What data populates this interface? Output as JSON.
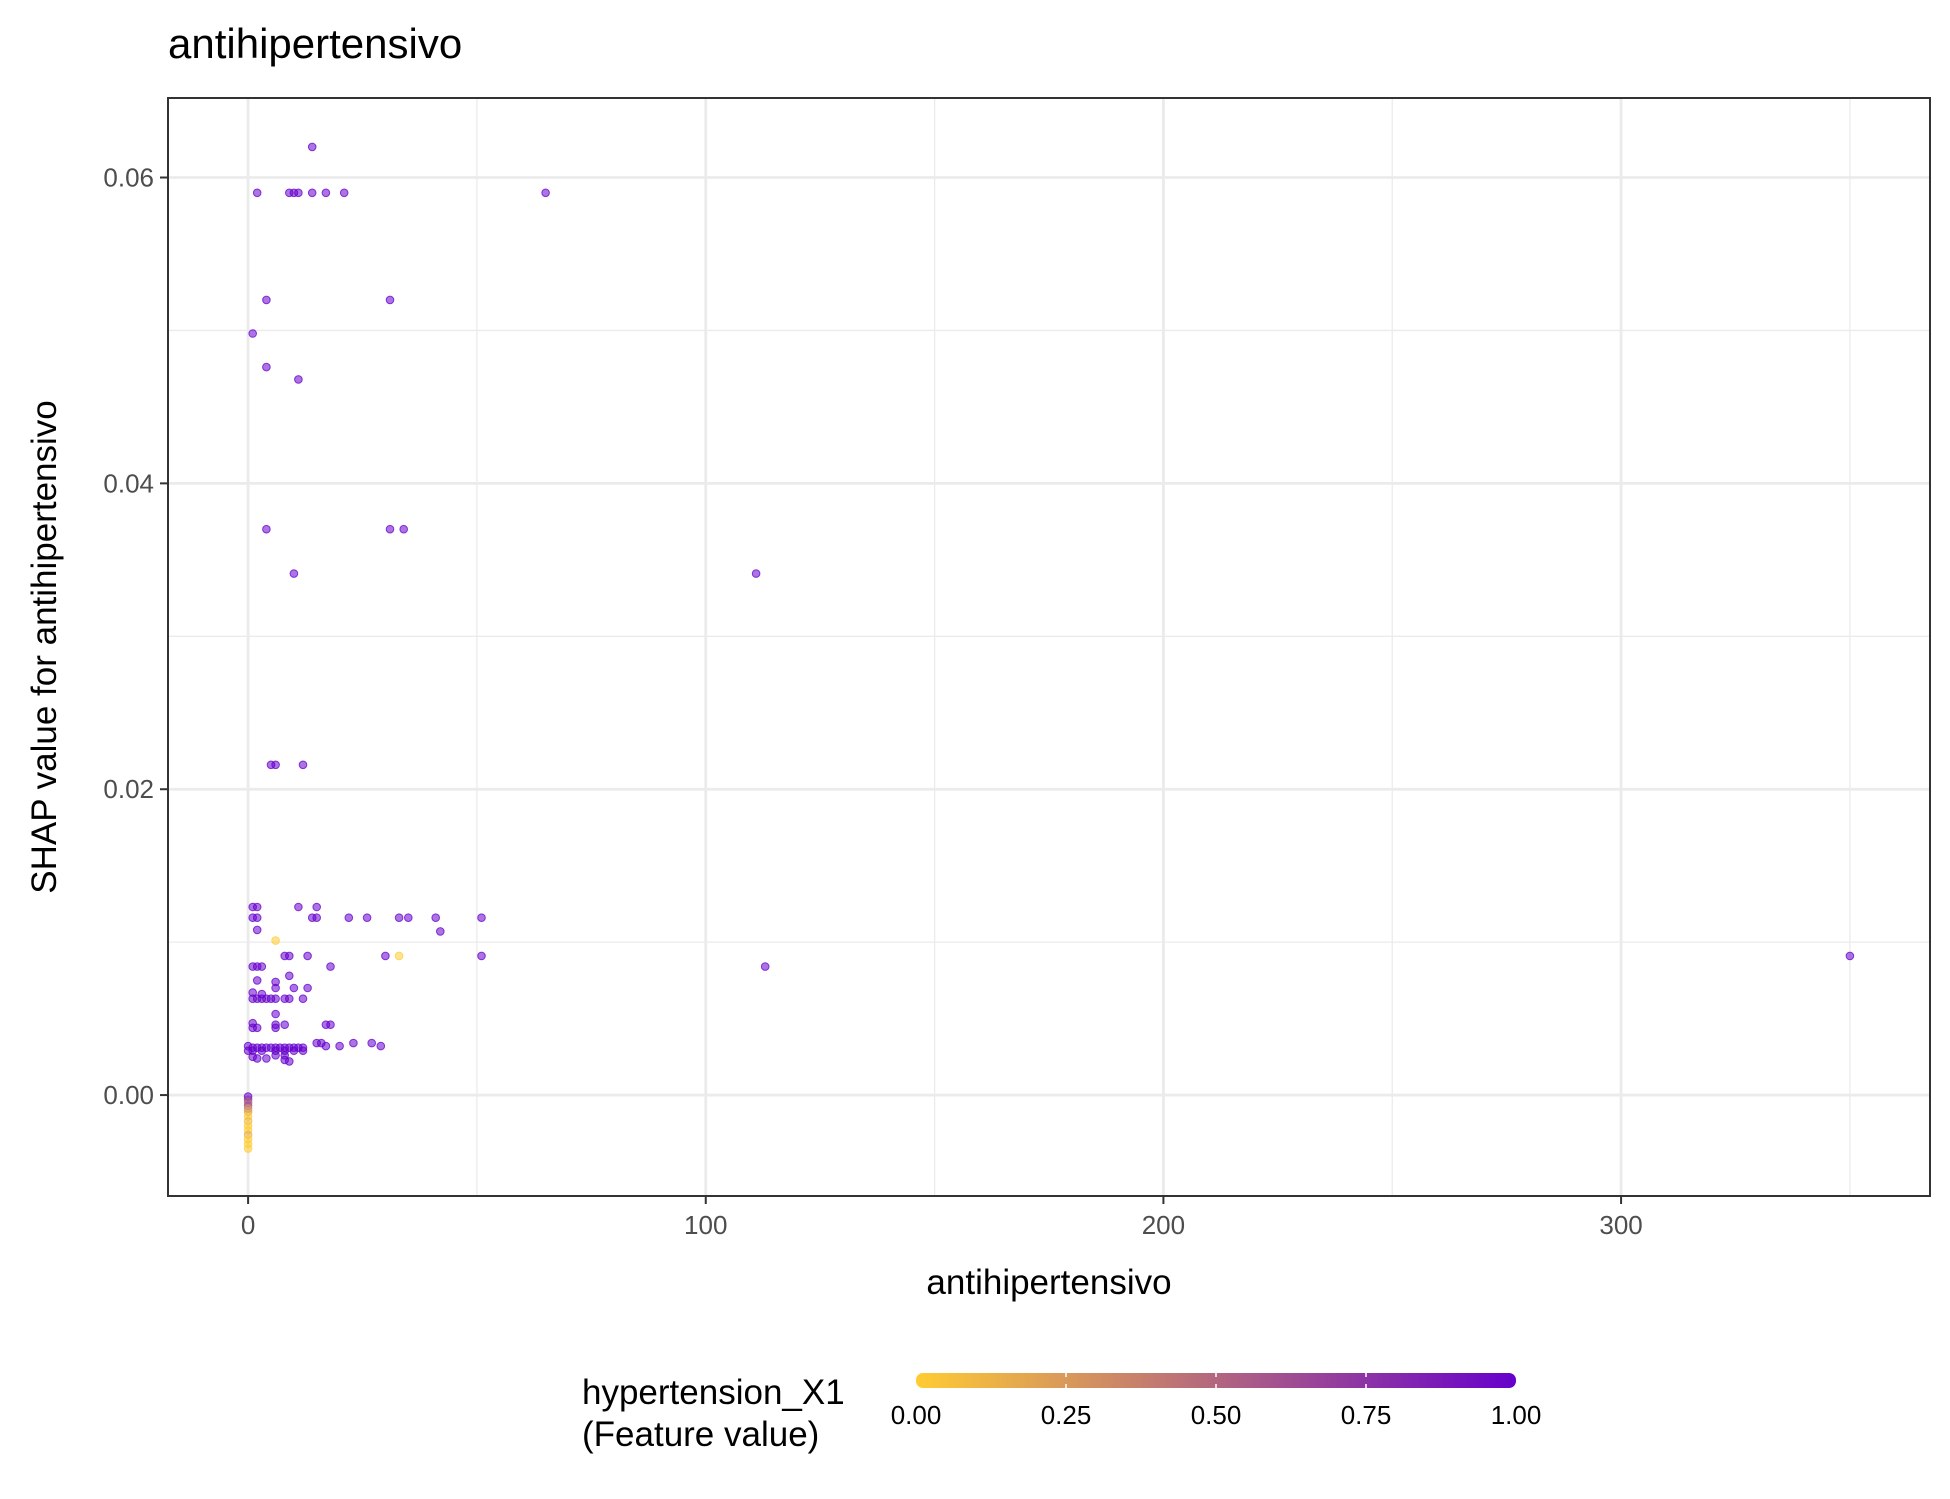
{
  "chart_data": {
    "type": "scatter",
    "title": "antihipertensivo",
    "xlabel": "antihipertensivo",
    "ylabel": "SHAP value for antihipertensivo",
    "xlim": [
      -17.5,
      367.5
    ],
    "ylim": [
      -0.0066,
      0.0652
    ],
    "x_ticks": [
      0,
      100,
      200,
      300
    ],
    "x_tick_labels": [
      "0",
      "100",
      "200",
      "300"
    ],
    "x_minor_ticks": [
      50,
      150,
      250,
      350
    ],
    "y_ticks": [
      0.0,
      0.02,
      0.04,
      0.06
    ],
    "y_tick_labels": [
      "0.00",
      "0.02",
      "0.04",
      "0.06"
    ],
    "y_minor_ticks": [
      0.01,
      0.03,
      0.05
    ],
    "grid": true,
    "color_scale": {
      "title_line1": "hypertension_X1",
      "title_line2": "(Feature value)",
      "low_color": "#FFCC33",
      "high_color": "#6600CC",
      "ticks": [
        0.0,
        0.25,
        0.5,
        0.75,
        1.0
      ],
      "tick_labels": [
        "0.00",
        "0.25",
        "0.50",
        "0.75",
        "1.00"
      ],
      "placement": "bottom"
    },
    "points": [
      {
        "x": 14,
        "y": 0.062,
        "c": 1
      },
      {
        "x": 2,
        "y": 0.059,
        "c": 1
      },
      {
        "x": 9,
        "y": 0.059,
        "c": 1
      },
      {
        "x": 10,
        "y": 0.059,
        "c": 1
      },
      {
        "x": 11,
        "y": 0.059,
        "c": 1
      },
      {
        "x": 14,
        "y": 0.059,
        "c": 1
      },
      {
        "x": 17,
        "y": 0.059,
        "c": 1
      },
      {
        "x": 21,
        "y": 0.059,
        "c": 1
      },
      {
        "x": 65,
        "y": 0.059,
        "c": 1
      },
      {
        "x": 4,
        "y": 0.052,
        "c": 1
      },
      {
        "x": 31,
        "y": 0.052,
        "c": 1
      },
      {
        "x": 1,
        "y": 0.0498,
        "c": 1
      },
      {
        "x": 4,
        "y": 0.0476,
        "c": 1
      },
      {
        "x": 11,
        "y": 0.0468,
        "c": 1
      },
      {
        "x": 4,
        "y": 0.037,
        "c": 1
      },
      {
        "x": 31,
        "y": 0.037,
        "c": 1
      },
      {
        "x": 34,
        "y": 0.037,
        "c": 1
      },
      {
        "x": 10,
        "y": 0.0341,
        "c": 1
      },
      {
        "x": 111,
        "y": 0.0341,
        "c": 1
      },
      {
        "x": 5,
        "y": 0.0216,
        "c": 1
      },
      {
        "x": 6,
        "y": 0.0216,
        "c": 1
      },
      {
        "x": 12,
        "y": 0.0216,
        "c": 1
      },
      {
        "x": 1,
        "y": 0.0123,
        "c": 1
      },
      {
        "x": 2,
        "y": 0.0123,
        "c": 1
      },
      {
        "x": 11,
        "y": 0.0123,
        "c": 1
      },
      {
        "x": 15,
        "y": 0.0123,
        "c": 1
      },
      {
        "x": 1,
        "y": 0.0116,
        "c": 1
      },
      {
        "x": 2,
        "y": 0.0116,
        "c": 1
      },
      {
        "x": 14,
        "y": 0.0116,
        "c": 1
      },
      {
        "x": 15,
        "y": 0.0116,
        "c": 1
      },
      {
        "x": 22,
        "y": 0.0116,
        "c": 1
      },
      {
        "x": 26,
        "y": 0.0116,
        "c": 1
      },
      {
        "x": 33,
        "y": 0.0116,
        "c": 1
      },
      {
        "x": 35,
        "y": 0.0116,
        "c": 1
      },
      {
        "x": 41,
        "y": 0.0116,
        "c": 1
      },
      {
        "x": 51,
        "y": 0.0116,
        "c": 1
      },
      {
        "x": 2,
        "y": 0.0108,
        "c": 1
      },
      {
        "x": 42,
        "y": 0.0107,
        "c": 1
      },
      {
        "x": 6,
        "y": 0.0101,
        "c": 0
      },
      {
        "x": 8,
        "y": 0.0091,
        "c": 1
      },
      {
        "x": 9,
        "y": 0.0091,
        "c": 1
      },
      {
        "x": 13,
        "y": 0.0091,
        "c": 1
      },
      {
        "x": 30,
        "y": 0.0091,
        "c": 1
      },
      {
        "x": 33,
        "y": 0.0091,
        "c": 0
      },
      {
        "x": 51,
        "y": 0.0091,
        "c": 1
      },
      {
        "x": 350,
        "y": 0.0091,
        "c": 1
      },
      {
        "x": 1,
        "y": 0.0084,
        "c": 1
      },
      {
        "x": 2,
        "y": 0.0084,
        "c": 1
      },
      {
        "x": 3,
        "y": 0.0084,
        "c": 1
      },
      {
        "x": 18,
        "y": 0.0084,
        "c": 1
      },
      {
        "x": 113,
        "y": 0.0084,
        "c": 1
      },
      {
        "x": 9,
        "y": 0.0078,
        "c": 1
      },
      {
        "x": 2,
        "y": 0.0075,
        "c": 1
      },
      {
        "x": 6,
        "y": 0.0074,
        "c": 1
      },
      {
        "x": 6,
        "y": 0.007,
        "c": 1
      },
      {
        "x": 10,
        "y": 0.007,
        "c": 1
      },
      {
        "x": 13,
        "y": 0.007,
        "c": 1
      },
      {
        "x": 1,
        "y": 0.0067,
        "c": 1
      },
      {
        "x": 3,
        "y": 0.0066,
        "c": 1
      },
      {
        "x": 1,
        "y": 0.0063,
        "c": 1
      },
      {
        "x": 2,
        "y": 0.0063,
        "c": 1
      },
      {
        "x": 3,
        "y": 0.0063,
        "c": 1
      },
      {
        "x": 4,
        "y": 0.0063,
        "c": 1
      },
      {
        "x": 5,
        "y": 0.0063,
        "c": 1
      },
      {
        "x": 6,
        "y": 0.0063,
        "c": 1
      },
      {
        "x": 8,
        "y": 0.0063,
        "c": 1
      },
      {
        "x": 9,
        "y": 0.0063,
        "c": 1
      },
      {
        "x": 12,
        "y": 0.0063,
        "c": 1
      },
      {
        "x": 6,
        "y": 0.0053,
        "c": 1
      },
      {
        "x": 1,
        "y": 0.0047,
        "c": 1
      },
      {
        "x": 6,
        "y": 0.0046,
        "c": 1
      },
      {
        "x": 8,
        "y": 0.0046,
        "c": 1
      },
      {
        "x": 17,
        "y": 0.0046,
        "c": 1
      },
      {
        "x": 18,
        "y": 0.0046,
        "c": 1
      },
      {
        "x": 1,
        "y": 0.0044,
        "c": 1
      },
      {
        "x": 2,
        "y": 0.0044,
        "c": 1
      },
      {
        "x": 6,
        "y": 0.0044,
        "c": 1
      },
      {
        "x": 15,
        "y": 0.0034,
        "c": 1
      },
      {
        "x": 16,
        "y": 0.0034,
        "c": 1
      },
      {
        "x": 23,
        "y": 0.0034,
        "c": 1
      },
      {
        "x": 27,
        "y": 0.0034,
        "c": 1
      },
      {
        "x": 17,
        "y": 0.0032,
        "c": 1
      },
      {
        "x": 20,
        "y": 0.0032,
        "c": 1
      },
      {
        "x": 29,
        "y": 0.0032,
        "c": 1
      },
      {
        "x": 0,
        "y": 0.0032,
        "c": 1
      },
      {
        "x": 1,
        "y": 0.0031,
        "c": 1
      },
      {
        "x": 2,
        "y": 0.0031,
        "c": 1
      },
      {
        "x": 3,
        "y": 0.0031,
        "c": 1
      },
      {
        "x": 4,
        "y": 0.0031,
        "c": 1
      },
      {
        "x": 5,
        "y": 0.0031,
        "c": 1
      },
      {
        "x": 6,
        "y": 0.0031,
        "c": 1
      },
      {
        "x": 7,
        "y": 0.0031,
        "c": 1
      },
      {
        "x": 8,
        "y": 0.0031,
        "c": 1
      },
      {
        "x": 9,
        "y": 0.0031,
        "c": 1
      },
      {
        "x": 10,
        "y": 0.0031,
        "c": 1
      },
      {
        "x": 11,
        "y": 0.0031,
        "c": 1
      },
      {
        "x": 12,
        "y": 0.0031,
        "c": 1
      },
      {
        "x": 0,
        "y": 0.0029,
        "c": 1
      },
      {
        "x": 1,
        "y": 0.0029,
        "c": 1
      },
      {
        "x": 3,
        "y": 0.0029,
        "c": 1
      },
      {
        "x": 6,
        "y": 0.0029,
        "c": 1
      },
      {
        "x": 8,
        "y": 0.0029,
        "c": 1
      },
      {
        "x": 10,
        "y": 0.0029,
        "c": 1
      },
      {
        "x": 12,
        "y": 0.0029,
        "c": 1
      },
      {
        "x": 6,
        "y": 0.0026,
        "c": 1
      },
      {
        "x": 8,
        "y": 0.0026,
        "c": 1
      },
      {
        "x": 1,
        "y": 0.0025,
        "c": 1
      },
      {
        "x": 2,
        "y": 0.0024,
        "c": 1
      },
      {
        "x": 4,
        "y": 0.0024,
        "c": 1
      },
      {
        "x": 8,
        "y": 0.0023,
        "c": 1
      },
      {
        "x": 9,
        "y": 0.0022,
        "c": 1
      },
      {
        "x": 0,
        "y": -0.0001,
        "c": 1
      },
      {
        "x": 0,
        "y": -0.0003,
        "c": 0.75
      },
      {
        "x": 0,
        "y": -0.0005,
        "c": 0.5
      },
      {
        "x": 0,
        "y": -0.0007,
        "c": 0.6
      },
      {
        "x": 0,
        "y": -0.0009,
        "c": 0.3
      },
      {
        "x": 0,
        "y": -0.0011,
        "c": 0.2
      },
      {
        "x": 0,
        "y": -0.0014,
        "c": 0
      },
      {
        "x": 0,
        "y": -0.0017,
        "c": 0.1
      },
      {
        "x": 0,
        "y": -0.002,
        "c": 0
      },
      {
        "x": 0,
        "y": -0.0023,
        "c": 0
      },
      {
        "x": 0,
        "y": -0.0026,
        "c": 0.15
      },
      {
        "x": 0,
        "y": -0.0029,
        "c": 0
      },
      {
        "x": 0,
        "y": -0.0032,
        "c": 0
      },
      {
        "x": 0,
        "y": -0.0035,
        "c": 0
      }
    ]
  }
}
